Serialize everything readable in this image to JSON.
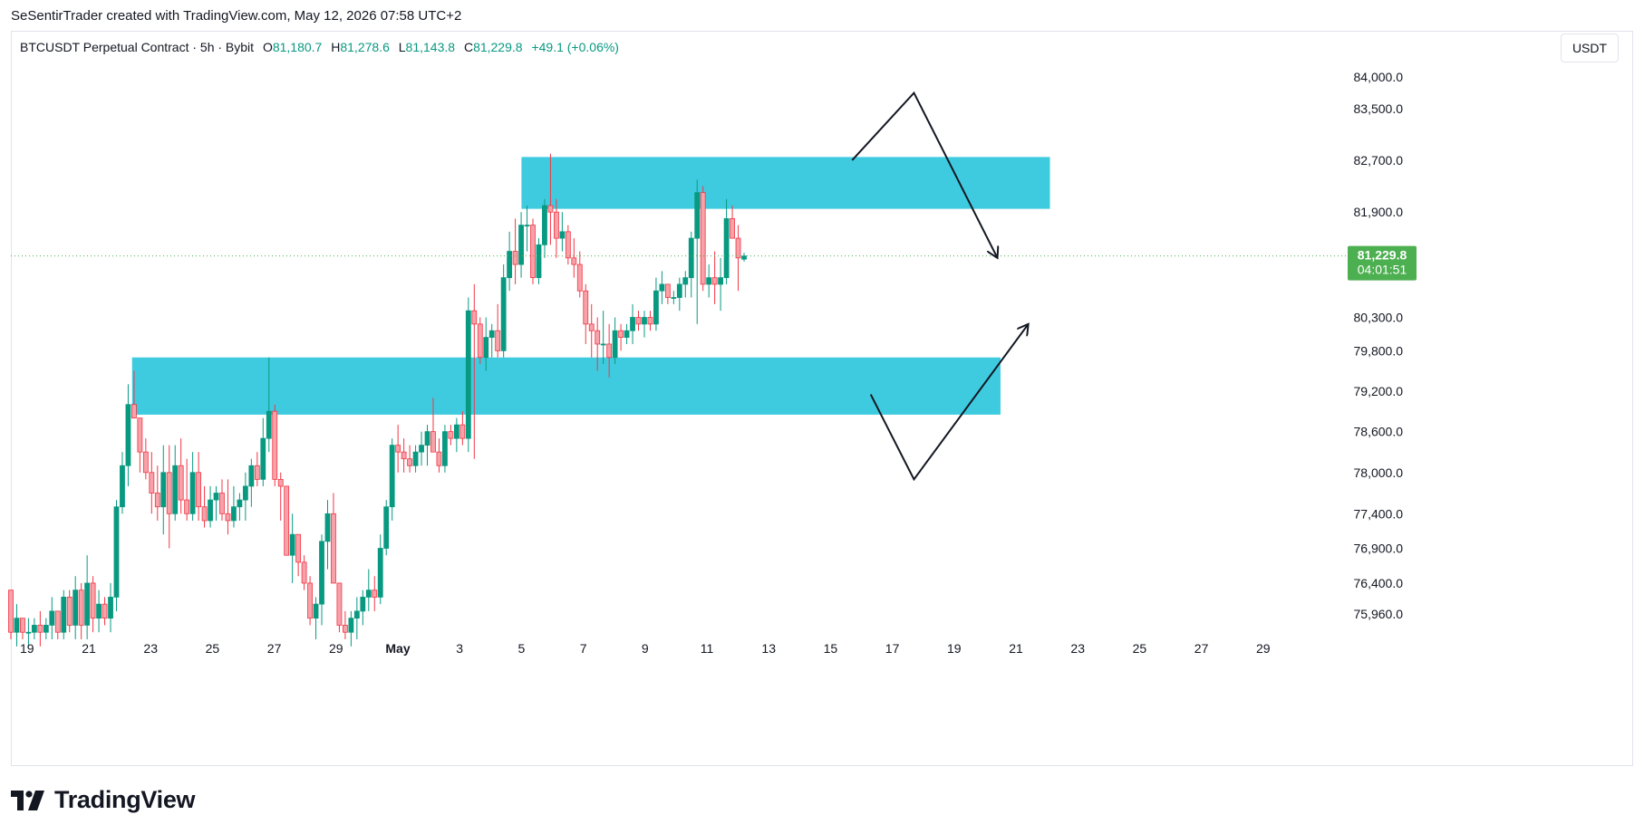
{
  "caption": "SeSentirTrader created with TradingView.com, May 12, 2026 07:58 UTC+2",
  "legend": {
    "symbol": "BTCUSDT Perpetual Contract · 5h · Bybit",
    "o_label": "O",
    "o_value": "81,180.7",
    "h_label": "H",
    "h_value": "81,278.6",
    "l_label": "L",
    "l_value": "81,143.8",
    "c_label": "C",
    "c_value": "81,229.8",
    "change": "+49.1 (+0.06%)"
  },
  "unit_button": "USDT",
  "price_badge": {
    "price": "81,229.8",
    "countdown": "04:01:51",
    "value": 81229.8
  },
  "brand": {
    "name": "TradingView"
  },
  "colors": {
    "up": "#089981",
    "down": "#f23645",
    "zone": "#3fcbdf",
    "badge": "#4caf50"
  },
  "chart_data": {
    "type": "candlestick",
    "y_scale": "log",
    "yticks": [
      84000,
      83500,
      82700,
      81900,
      80300,
      79800,
      79200,
      78600,
      78000,
      77400,
      76900,
      76400,
      75960
    ],
    "ytick_labels": [
      "84,000.0",
      "83,500.0",
      "82,700.0",
      "81,900.0",
      "80,300.0",
      "79,800.0",
      "79,200.0",
      "78,600.0",
      "78,000.0",
      "77,400.0",
      "76,900.0",
      "76,400.0",
      "75,960.0"
    ],
    "xticks": [
      {
        "label": "19",
        "day": -12
      },
      {
        "label": "21",
        "day": -10
      },
      {
        "label": "23",
        "day": -8
      },
      {
        "label": "25",
        "day": -6
      },
      {
        "label": "27",
        "day": -4
      },
      {
        "label": "29",
        "day": -2
      },
      {
        "label": "May",
        "day": 0
      },
      {
        "label": "3",
        "day": 2
      },
      {
        "label": "5",
        "day": 4
      },
      {
        "label": "7",
        "day": 6
      },
      {
        "label": "9",
        "day": 8
      },
      {
        "label": "11",
        "day": 10
      },
      {
        "label": "13",
        "day": 12
      },
      {
        "label": "15",
        "day": 14
      },
      {
        "label": "17",
        "day": 16
      },
      {
        "label": "19",
        "day": 18
      },
      {
        "label": "21",
        "day": 20
      },
      {
        "label": "23",
        "day": 22
      },
      {
        "label": "25",
        "day": 24
      },
      {
        "label": "27",
        "day": 26
      },
      {
        "label": "29",
        "day": 28
      }
    ],
    "zones": [
      {
        "from_day": 4.0,
        "to_day": 21.1,
        "low": 81950,
        "high": 82750
      },
      {
        "from_day": -8.6,
        "to_day": 19.5,
        "low": 78850,
        "high": 79700
      }
    ],
    "arrows": [
      {
        "points": [
          [
            14.7,
            82700
          ],
          [
            16.7,
            83750
          ],
          [
            19.4,
            81200
          ]
        ],
        "head": "end"
      },
      {
        "points": [
          [
            15.3,
            79150
          ],
          [
            16.7,
            77900
          ],
          [
            20.4,
            80200
          ]
        ],
        "head": "end"
      }
    ],
    "candles": [
      [
        76300,
        76300,
        75600,
        75700
      ],
      [
        75700,
        76100,
        75500,
        75900
      ],
      [
        75900,
        75900,
        75600,
        75700
      ],
      [
        75700,
        75900,
        75500,
        75700
      ],
      [
        75700,
        75900,
        75600,
        75800
      ],
      [
        75800,
        76000,
        75500,
        75700
      ],
      [
        75700,
        75900,
        75600,
        75800
      ],
      [
        75800,
        76200,
        75600,
        76000
      ],
      [
        76000,
        76000,
        75600,
        75700
      ],
      [
        75700,
        76300,
        75600,
        76200
      ],
      [
        76200,
        76300,
        75700,
        75800
      ],
      [
        75800,
        76500,
        75600,
        76300
      ],
      [
        76300,
        76400,
        75600,
        75800
      ],
      [
        75800,
        76800,
        75600,
        76400
      ],
      [
        76400,
        76500,
        75700,
        75900
      ],
      [
        75900,
        76300,
        75700,
        76100
      ],
      [
        76100,
        76200,
        75800,
        75900
      ],
      [
        75900,
        76400,
        75700,
        76200
      ],
      [
        76200,
        77600,
        76000,
        77500
      ],
      [
        77500,
        78300,
        77400,
        78100
      ],
      [
        78100,
        79300,
        77800,
        79000
      ],
      [
        79000,
        79500,
        78800,
        78800
      ],
      [
        78800,
        78800,
        78000,
        78300
      ],
      [
        78300,
        78500,
        77900,
        78000
      ],
      [
        78000,
        78300,
        77400,
        77700
      ],
      [
        77700,
        78100,
        77300,
        77500
      ],
      [
        77500,
        78400,
        77100,
        78000
      ],
      [
        78000,
        78400,
        76900,
        77400
      ],
      [
        77400,
        78400,
        77300,
        78100
      ],
      [
        78100,
        78500,
        77400,
        77600
      ],
      [
        77600,
        78200,
        77300,
        77400
      ],
      [
        77400,
        78300,
        77300,
        78000
      ],
      [
        78000,
        78300,
        77300,
        77500
      ],
      [
        77500,
        77800,
        77200,
        77300
      ],
      [
        77300,
        77800,
        77200,
        77600
      ],
      [
        77600,
        77800,
        77300,
        77700
      ],
      [
        77700,
        77900,
        77300,
        77400
      ],
      [
        77400,
        77900,
        77100,
        77300
      ],
      [
        77300,
        77800,
        77200,
        77500
      ],
      [
        77500,
        77700,
        77300,
        77600
      ],
      [
        77600,
        78000,
        77300,
        77800
      ],
      [
        77800,
        78200,
        77500,
        78100
      ],
      [
        78100,
        78300,
        77800,
        77900
      ],
      [
        77900,
        78800,
        77800,
        78500
      ],
      [
        78500,
        79700,
        78300,
        78900
      ],
      [
        78900,
        79000,
        77800,
        77900
      ],
      [
        77900,
        78000,
        77300,
        77800
      ],
      [
        77800,
        77800,
        76800,
        76800
      ],
      [
        76800,
        77400,
        76400,
        77100
      ],
      [
        77100,
        77100,
        76500,
        76700
      ],
      [
        76700,
        76800,
        76300,
        76400
      ],
      [
        76400,
        76500,
        75800,
        75900
      ],
      [
        75900,
        76200,
        75600,
        76100
      ],
      [
        76100,
        77100,
        75800,
        77000
      ],
      [
        77000,
        77600,
        76600,
        77400
      ],
      [
        77400,
        77700,
        76400,
        76400
      ],
      [
        76400,
        76400,
        75700,
        75800
      ],
      [
        75800,
        76000,
        75600,
        75700
      ],
      [
        75700,
        76000,
        75500,
        75900
      ],
      [
        75900,
        76200,
        75600,
        76000
      ],
      [
        76000,
        76300,
        75800,
        76200
      ],
      [
        76200,
        76600,
        76000,
        76300
      ],
      [
        76300,
        76500,
        76000,
        76200
      ],
      [
        76200,
        77100,
        76100,
        76900
      ],
      [
        76900,
        77600,
        76800,
        77500
      ],
      [
        77500,
        78500,
        77300,
        78400
      ],
      [
        78400,
        78700,
        78000,
        78300
      ],
      [
        78300,
        78500,
        78000,
        78200
      ],
      [
        78200,
        78400,
        78000,
        78100
      ],
      [
        78100,
        78400,
        78000,
        78300
      ],
      [
        78300,
        78600,
        78100,
        78400
      ],
      [
        78400,
        78700,
        78100,
        78600
      ],
      [
        78600,
        79100,
        78300,
        78300
      ],
      [
        78300,
        78500,
        78000,
        78100
      ],
      [
        78100,
        78700,
        78000,
        78600
      ],
      [
        78600,
        78700,
        78400,
        78500
      ],
      [
        78500,
        78800,
        78300,
        78700
      ],
      [
        78700,
        78900,
        78400,
        78500
      ],
      [
        78500,
        80600,
        78300,
        80400
      ],
      [
        80400,
        80800,
        78200,
        80200
      ],
      [
        80200,
        80300,
        79600,
        79700
      ],
      [
        79700,
        80300,
        79500,
        80000
      ],
      [
        80000,
        80200,
        79700,
        80100
      ],
      [
        80100,
        80500,
        79700,
        79800
      ],
      [
        79800,
        81100,
        79700,
        80900
      ],
      [
        80900,
        81600,
        80700,
        81300
      ],
      [
        81300,
        81800,
        80800,
        81100
      ],
      [
        81100,
        81900,
        80900,
        81700
      ],
      [
        81700,
        82000,
        81300,
        81700
      ],
      [
        81700,
        81800,
        80800,
        80900
      ],
      [
        80900,
        81500,
        80800,
        81400
      ],
      [
        81400,
        82100,
        81200,
        82000
      ],
      [
        82000,
        82800,
        81400,
        81900
      ],
      [
        81900,
        82100,
        81200,
        81500
      ],
      [
        81500,
        81900,
        81300,
        81600
      ],
      [
        81600,
        81700,
        81100,
        81200
      ],
      [
        81200,
        81500,
        80900,
        81100
      ],
      [
        81100,
        81300,
        80600,
        80700
      ],
      [
        80700,
        80800,
        79900,
        80200
      ],
      [
        80200,
        80500,
        79700,
        80100
      ],
      [
        80100,
        80300,
        79500,
        79900
      ],
      [
        79900,
        80400,
        79600,
        79900
      ],
      [
        79900,
        80200,
        79400,
        79700
      ],
      [
        79700,
        80300,
        79600,
        80100
      ],
      [
        80100,
        80200,
        79800,
        80000
      ],
      [
        80000,
        80200,
        79900,
        80100
      ],
      [
        80100,
        80500,
        79900,
        80300
      ],
      [
        80300,
        80400,
        80100,
        80200
      ],
      [
        80200,
        80400,
        80000,
        80300
      ],
      [
        80300,
        80400,
        80100,
        80200
      ],
      [
        80200,
        80900,
        80100,
        80700
      ],
      [
        80700,
        81000,
        80500,
        80800
      ],
      [
        80800,
        80800,
        80500,
        80600
      ],
      [
        80600,
        80700,
        80500,
        80600
      ],
      [
        80600,
        80900,
        80400,
        80800
      ],
      [
        80800,
        81000,
        80600,
        80900
      ],
      [
        80900,
        81600,
        80600,
        81500
      ],
      [
        81500,
        82400,
        80200,
        82200
      ],
      [
        82200,
        82300,
        80700,
        80800
      ],
      [
        80800,
        81100,
        80600,
        80900
      ],
      [
        80900,
        81300,
        80500,
        80800
      ],
      [
        80800,
        81200,
        80400,
        80900
      ],
      [
        80900,
        82100,
        80800,
        81800
      ],
      [
        81800,
        82000,
        81500,
        81500
      ],
      [
        81500,
        81700,
        80700,
        81200
      ],
      [
        81180.7,
        81278.6,
        81143.8,
        81229.8
      ]
    ]
  }
}
